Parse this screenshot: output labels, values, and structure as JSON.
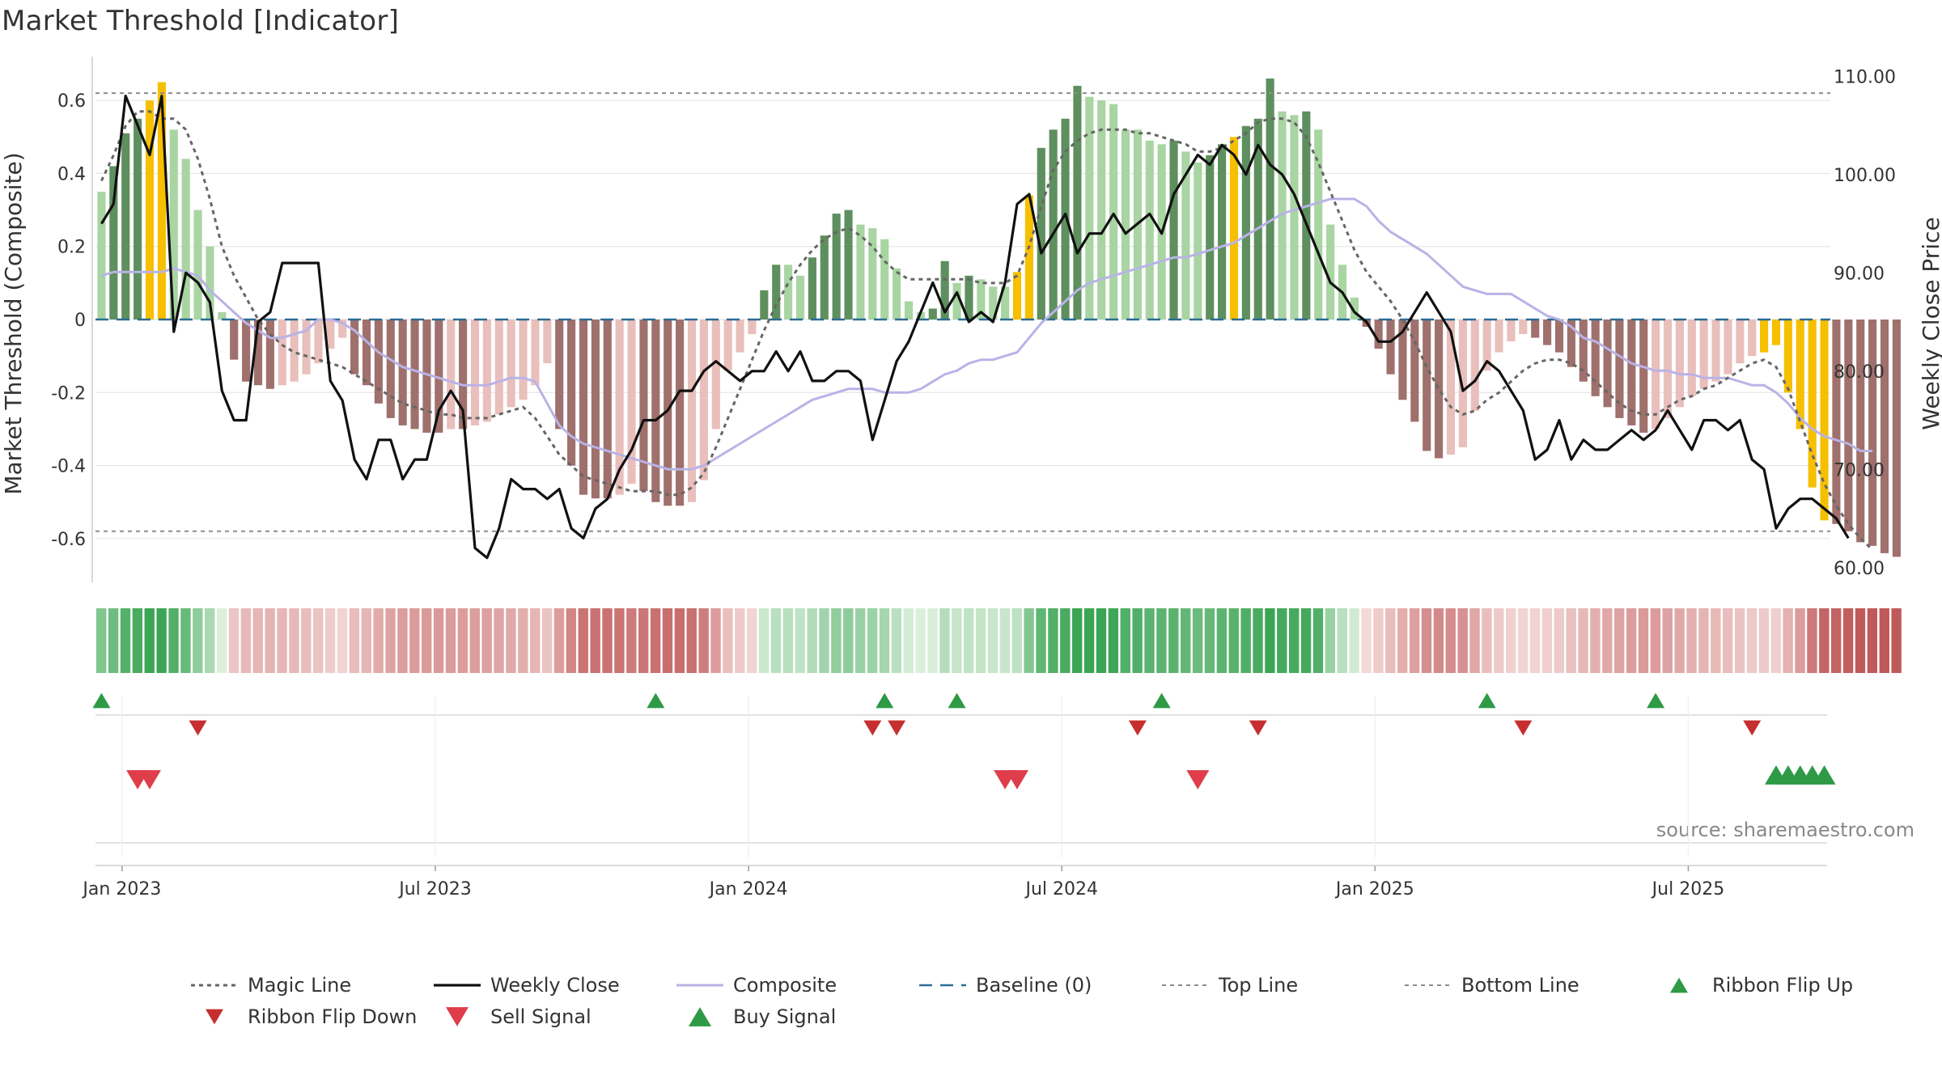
{
  "chart_data": {
    "type": "bar",
    "title": "Market Threshold [Indicator]",
    "ylabel": "Market Threshold (Composite)",
    "y2label": "Weekly Close Price",
    "source": "source: sharemaestro.com",
    "ylim": [
      -0.72,
      0.72
    ],
    "y2lim": [
      58.5,
      112
    ],
    "ytick_labels": [
      "0.6",
      "0.4",
      "0.2",
      "0",
      "-0.2",
      "-0.4",
      "-0.6"
    ],
    "ytick_values": [
      0.6,
      0.4,
      0.2,
      0,
      -0.2,
      -0.4,
      -0.6
    ],
    "y2tick_labels": [
      "110.00",
      "100.00",
      "90.00",
      "80.00",
      "70.00",
      "60.00"
    ],
    "y2tick_values": [
      110,
      100,
      90,
      80,
      70,
      60
    ],
    "xtick_labels": [
      "Jan 2023",
      "Jul 2023",
      "Jan 2024",
      "Jul 2024",
      "Jan 2025",
      "Jul 2025"
    ],
    "xtick_weeks": [
      1,
      27,
      53,
      79,
      105,
      131
    ],
    "top_line": 0.62,
    "bottom_line": -0.58,
    "weeks": 144,
    "composite_bars": [
      0.35,
      0.42,
      0.51,
      0.55,
      0.6,
      0.65,
      0.52,
      0.44,
      0.3,
      0.2,
      0.02,
      -0.11,
      -0.17,
      -0.18,
      -0.19,
      -0.18,
      -0.17,
      -0.15,
      -0.12,
      -0.08,
      -0.05,
      -0.15,
      -0.18,
      -0.23,
      -0.27,
      -0.29,
      -0.3,
      -0.31,
      -0.31,
      -0.3,
      -0.3,
      -0.29,
      -0.28,
      -0.26,
      -0.24,
      -0.22,
      -0.18,
      -0.12,
      -0.3,
      -0.4,
      -0.48,
      -0.49,
      -0.49,
      -0.48,
      -0.45,
      -0.47,
      -0.5,
      -0.51,
      -0.51,
      -0.5,
      -0.44,
      -0.3,
      -0.14,
      -0.09,
      -0.04,
      0.08,
      0.15,
      0.15,
      0.12,
      0.17,
      0.23,
      0.29,
      0.3,
      0.26,
      0.25,
      0.22,
      0.14,
      0.05,
      0.02,
      0.03,
      0.16,
      0.1,
      0.12,
      0.11,
      0.09,
      0.09,
      0.13,
      0.34,
      0.47,
      0.52,
      0.55,
      0.64,
      0.61,
      0.6,
      0.59,
      0.52,
      0.52,
      0.49,
      0.48,
      0.49,
      0.46,
      0.43,
      0.45,
      0.48,
      0.5,
      0.53,
      0.55,
      0.66,
      0.57,
      0.56,
      0.57,
      0.52,
      0.26,
      0.15,
      0.06,
      -0.02,
      -0.08,
      -0.15,
      -0.22,
      -0.28,
      -0.36,
      -0.38,
      -0.37,
      -0.35,
      -0.25,
      -0.14,
      -0.09,
      -0.06,
      -0.04,
      -0.05,
      -0.07,
      -0.09,
      -0.13,
      -0.17,
      -0.21,
      -0.24,
      -0.27,
      -0.29,
      -0.31,
      -0.3,
      -0.27,
      -0.24,
      -0.21,
      -0.19,
      -0.17,
      -0.15,
      -0.12,
      -0.1,
      -0.09,
      -0.07,
      -0.2,
      -0.3,
      -0.46,
      -0.55,
      -0.56,
      -0.58,
      -0.61,
      -0.62,
      -0.64,
      -0.65
    ],
    "gold_bar_weeks": [
      4,
      5,
      76,
      77,
      94,
      138,
      139,
      140,
      141,
      142,
      143
    ],
    "weekly_close": [
      95,
      97,
      108,
      105,
      102,
      108,
      84,
      90,
      89,
      87,
      78,
      75,
      75,
      85,
      86,
      91,
      91,
      91,
      91,
      79,
      77,
      71,
      69,
      73,
      73,
      69,
      71,
      71,
      76,
      78,
      76,
      62,
      61,
      64,
      69,
      68,
      68,
      67,
      68,
      64,
      63,
      66,
      67,
      70,
      72,
      75,
      75,
      76,
      78,
      78,
      80,
      81,
      80,
      79,
      80,
      80,
      82,
      80,
      82,
      79,
      79,
      80,
      80,
      79,
      73,
      77,
      81,
      83,
      86,
      89,
      86,
      88,
      85,
      86,
      85,
      89,
      97,
      98,
      92,
      94,
      96,
      92,
      94,
      94,
      96,
      94,
      95,
      96,
      94,
      98,
      100,
      102,
      101,
      103,
      102,
      100,
      103,
      101,
      100,
      98,
      95,
      92,
      89,
      88,
      86,
      85,
      83,
      83,
      84,
      86,
      88,
      86,
      84,
      78,
      79,
      81,
      80,
      78,
      76,
      71,
      72,
      75,
      71,
      73,
      72,
      72,
      73,
      74,
      73,
      74,
      76,
      74,
      72,
      75,
      75,
      74,
      75,
      71,
      70,
      64,
      66,
      67,
      67,
      66,
      65,
      63
    ],
    "composite_line": [
      0.12,
      0.13,
      0.13,
      0.13,
      0.13,
      0.13,
      0.14,
      0.13,
      0.12,
      0.08,
      0.05,
      0.02,
      -0.01,
      -0.03,
      -0.05,
      -0.05,
      -0.04,
      -0.03,
      0.0,
      0.0,
      -0.01,
      -0.03,
      -0.06,
      -0.09,
      -0.11,
      -0.13,
      -0.14,
      -0.15,
      -0.16,
      -0.17,
      -0.18,
      -0.18,
      -0.18,
      -0.17,
      -0.16,
      -0.16,
      -0.17,
      -0.23,
      -0.29,
      -0.32,
      -0.34,
      -0.35,
      -0.36,
      -0.37,
      -0.38,
      -0.39,
      -0.4,
      -0.41,
      -0.41,
      -0.41,
      -0.4,
      -0.38,
      -0.36,
      -0.34,
      -0.32,
      -0.3,
      -0.28,
      -0.26,
      -0.24,
      -0.22,
      -0.21,
      -0.2,
      -0.19,
      -0.19,
      -0.19,
      -0.2,
      -0.2,
      -0.2,
      -0.19,
      -0.17,
      -0.15,
      -0.14,
      -0.12,
      -0.11,
      -0.11,
      -0.1,
      -0.09,
      -0.05,
      -0.01,
      0.02,
      0.05,
      0.08,
      0.1,
      0.11,
      0.12,
      0.13,
      0.14,
      0.15,
      0.16,
      0.17,
      0.17,
      0.18,
      0.19,
      0.2,
      0.21,
      0.23,
      0.25,
      0.27,
      0.29,
      0.3,
      0.31,
      0.32,
      0.33,
      0.33,
      0.33,
      0.31,
      0.27,
      0.24,
      0.22,
      0.2,
      0.18,
      0.15,
      0.12,
      0.09,
      0.08,
      0.07,
      0.07,
      0.07,
      0.05,
      0.03,
      0.01,
      0.0,
      -0.02,
      -0.05,
      -0.06,
      -0.08,
      -0.1,
      -0.12,
      -0.13,
      -0.14,
      -0.14,
      -0.15,
      -0.15,
      -0.16,
      -0.16,
      -0.16,
      -0.17,
      -0.18,
      -0.18,
      -0.2,
      -0.23,
      -0.27,
      -0.3,
      -0.32,
      -0.33,
      -0.34,
      -0.36,
      -0.36
    ],
    "magic_line": [
      0.38,
      0.45,
      0.53,
      0.57,
      0.57,
      0.55,
      0.55,
      0.52,
      0.44,
      0.33,
      0.2,
      0.12,
      0.06,
      0.0,
      -0.04,
      -0.07,
      -0.09,
      -0.1,
      -0.11,
      -0.12,
      -0.13,
      -0.15,
      -0.17,
      -0.19,
      -0.21,
      -0.23,
      -0.24,
      -0.25,
      -0.26,
      -0.26,
      -0.27,
      -0.27,
      -0.27,
      -0.26,
      -0.25,
      -0.24,
      -0.27,
      -0.32,
      -0.37,
      -0.4,
      -0.43,
      -0.44,
      -0.45,
      -0.46,
      -0.47,
      -0.47,
      -0.47,
      -0.48,
      -0.48,
      -0.46,
      -0.42,
      -0.35,
      -0.27,
      -0.19,
      -0.11,
      -0.03,
      0.04,
      0.1,
      0.15,
      0.19,
      0.22,
      0.24,
      0.25,
      0.23,
      0.2,
      0.16,
      0.13,
      0.11,
      0.11,
      0.11,
      0.11,
      0.11,
      0.11,
      0.1,
      0.1,
      0.1,
      0.12,
      0.2,
      0.31,
      0.41,
      0.46,
      0.49,
      0.51,
      0.52,
      0.52,
      0.52,
      0.51,
      0.51,
      0.5,
      0.49,
      0.48,
      0.46,
      0.46,
      0.47,
      0.49,
      0.51,
      0.54,
      0.55,
      0.55,
      0.54,
      0.5,
      0.43,
      0.35,
      0.27,
      0.19,
      0.13,
      0.09,
      0.05,
      0.0,
      -0.06,
      -0.13,
      -0.19,
      -0.24,
      -0.26,
      -0.25,
      -0.22,
      -0.2,
      -0.17,
      -0.14,
      -0.12,
      -0.11,
      -0.11,
      -0.12,
      -0.14,
      -0.17,
      -0.2,
      -0.23,
      -0.25,
      -0.26,
      -0.26,
      -0.24,
      -0.22,
      -0.21,
      -0.19,
      -0.18,
      -0.16,
      -0.14,
      -0.12,
      -0.11,
      -0.13,
      -0.19,
      -0.28,
      -0.37,
      -0.45,
      -0.51,
      -0.56,
      -0.6,
      -0.63
    ],
    "ribbon_flip_up_weeks": [
      0,
      46,
      65,
      71,
      88,
      115,
      129
    ],
    "ribbon_flip_down_weeks": [
      8,
      64,
      66,
      86,
      96,
      118,
      137
    ],
    "sell_signal_weeks": [
      3,
      4,
      75,
      76,
      91
    ],
    "buy_signal_weeks": [
      139,
      140,
      141,
      142,
      143
    ],
    "legend": [
      {
        "label": "Magic Line",
        "style": "magic"
      },
      {
        "label": "Weekly Close",
        "style": "close"
      },
      {
        "label": "Composite",
        "style": "composite"
      },
      {
        "label": "Baseline (0)",
        "style": "baseline"
      },
      {
        "label": "Top Line",
        "style": "topline"
      },
      {
        "label": "Bottom Line",
        "style": "bottomline"
      },
      {
        "label": "Ribbon Flip Up",
        "style": "flipup"
      },
      {
        "label": "Ribbon Flip Down",
        "style": "flipdown"
      },
      {
        "label": "Sell Signal",
        "style": "sell"
      },
      {
        "label": "Buy Signal",
        "style": "buy"
      }
    ],
    "colors": {
      "pos_strong": "#5e8f5e",
      "pos_weak": "#a8d5a2",
      "neg_strong": "#a0706c",
      "neg_weak": "#e9bfbb",
      "gold": "#f6bf00",
      "close": "#111111",
      "composite": "#b9b3e6",
      "magic": "#666666",
      "baseline": "#2b6c94",
      "ref": "#8c8c8c",
      "flip_up": "#2e9a46",
      "flip_down": "#c62f2f",
      "sell": "#df3d4a",
      "buy": "#2e9a46"
    }
  }
}
